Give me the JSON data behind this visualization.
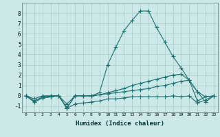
{
  "xlabel": "Humidex (Indice chaleur)",
  "bg_color": "#cce8e8",
  "grid_color": "#aacccc",
  "line_color": "#1a7070",
  "xlim": [
    -0.5,
    23.5
  ],
  "ylim": [
    -1.6,
    9.0
  ],
  "x": [
    0,
    1,
    2,
    3,
    4,
    5,
    6,
    7,
    8,
    9,
    10,
    11,
    12,
    13,
    14,
    15,
    16,
    17,
    18,
    19,
    20,
    21,
    22,
    23
  ],
  "line1": [
    0.0,
    -0.6,
    -0.2,
    -0.1,
    0.0,
    -1.2,
    -0.8,
    -0.7,
    -0.6,
    -0.5,
    -0.3,
    -0.3,
    -0.2,
    -0.1,
    -0.1,
    -0.1,
    -0.1,
    -0.1,
    0.0,
    -0.1,
    0.0,
    -0.7,
    -0.4,
    0.0
  ],
  "line2": [
    0.0,
    -0.5,
    -0.1,
    0.0,
    0.0,
    -1.15,
    0.0,
    0.0,
    0.0,
    0.1,
    0.2,
    0.3,
    0.4,
    0.5,
    0.6,
    0.7,
    0.9,
    1.0,
    1.2,
    1.4,
    1.5,
    -0.5,
    -0.1,
    0.0
  ],
  "line3": [
    0.0,
    -0.3,
    0.0,
    0.0,
    0.0,
    -0.8,
    0.0,
    0.0,
    0.0,
    0.1,
    0.3,
    0.5,
    0.7,
    1.0,
    1.2,
    1.4,
    1.6,
    1.8,
    2.0,
    2.1,
    1.5,
    0.4,
    -0.1,
    0.0
  ],
  "line4": [
    0.0,
    -0.6,
    -0.2,
    -0.1,
    0.0,
    -1.2,
    0.0,
    0.0,
    0.0,
    0.3,
    3.0,
    4.7,
    6.3,
    7.3,
    8.2,
    8.2,
    6.6,
    5.2,
    3.8,
    2.7,
    1.5,
    0.4,
    -0.6,
    0.0
  ],
  "yticks": [
    -1,
    0,
    1,
    2,
    3,
    4,
    5,
    6,
    7,
    8
  ],
  "xticks": [
    0,
    1,
    2,
    3,
    4,
    5,
    6,
    7,
    8,
    9,
    10,
    11,
    12,
    13,
    14,
    15,
    16,
    17,
    18,
    19,
    20,
    21,
    22,
    23
  ]
}
